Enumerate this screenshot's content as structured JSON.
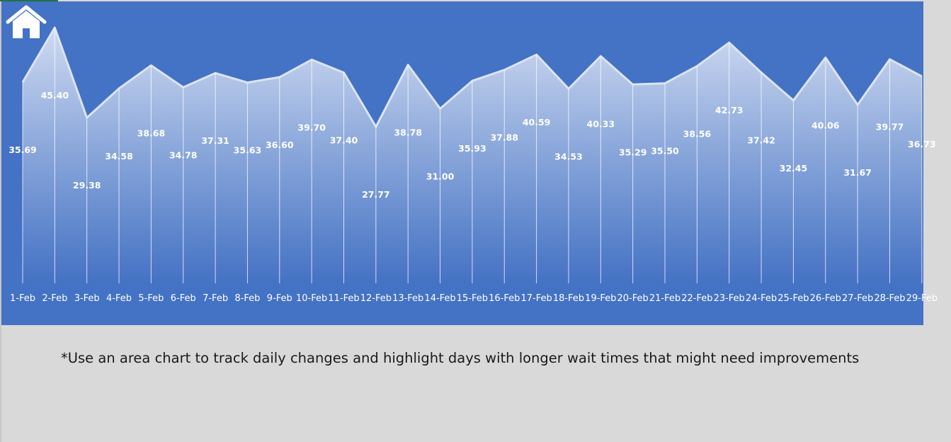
{
  "chart_data": {
    "type": "area",
    "title": "",
    "xlabel": "",
    "ylabel": "",
    "categories": [
      "1-Feb",
      "2-Feb",
      "3-Feb",
      "4-Feb",
      "5-Feb",
      "6-Feb",
      "7-Feb",
      "8-Feb",
      "9-Feb",
      "10-Feb",
      "11-Feb",
      "12-Feb",
      "13-Feb",
      "14-Feb",
      "15-Feb",
      "16-Feb",
      "17-Feb",
      "18-Feb",
      "19-Feb",
      "20-Feb",
      "21-Feb",
      "22-Feb",
      "23-Feb",
      "24-Feb",
      "25-Feb",
      "26-Feb",
      "27-Feb",
      "28-Feb",
      "29-Feb"
    ],
    "values": [
      35.69,
      45.4,
      29.38,
      34.58,
      38.68,
      34.78,
      37.31,
      35.63,
      36.6,
      39.7,
      37.4,
      27.77,
      38.78,
      31.0,
      35.93,
      37.88,
      40.59,
      34.53,
      40.33,
      35.29,
      35.5,
      38.56,
      42.73,
      37.42,
      32.45,
      40.06,
      31.67,
      39.77,
      36.73
    ],
    "data_labels": [
      "35.69",
      "45.40",
      "29.38",
      "34.58",
      "38.68",
      "34.78",
      "37.31",
      "35.63",
      "36.60",
      "39.70",
      "37.40",
      "27.77",
      "38.78",
      "31.00",
      "35.93",
      "37.88",
      "40.59",
      "34.53",
      "40.33",
      "35.29",
      "35.50",
      "38.56",
      "42.73",
      "37.42",
      "32.45",
      "40.06",
      "31.67",
      "39.77",
      "36.73"
    ],
    "grid": false,
    "legend": "none",
    "colors": {
      "background": "#4472c4",
      "fill_top": "#d6e0f3",
      "fill_bottom": "#4472c4",
      "line": "#dbe4f5",
      "label": "#ffffff"
    }
  },
  "home_icon": "home-icon",
  "note": "*Use an area chart to track daily changes and highlight days with longer wait times that might need improvements"
}
